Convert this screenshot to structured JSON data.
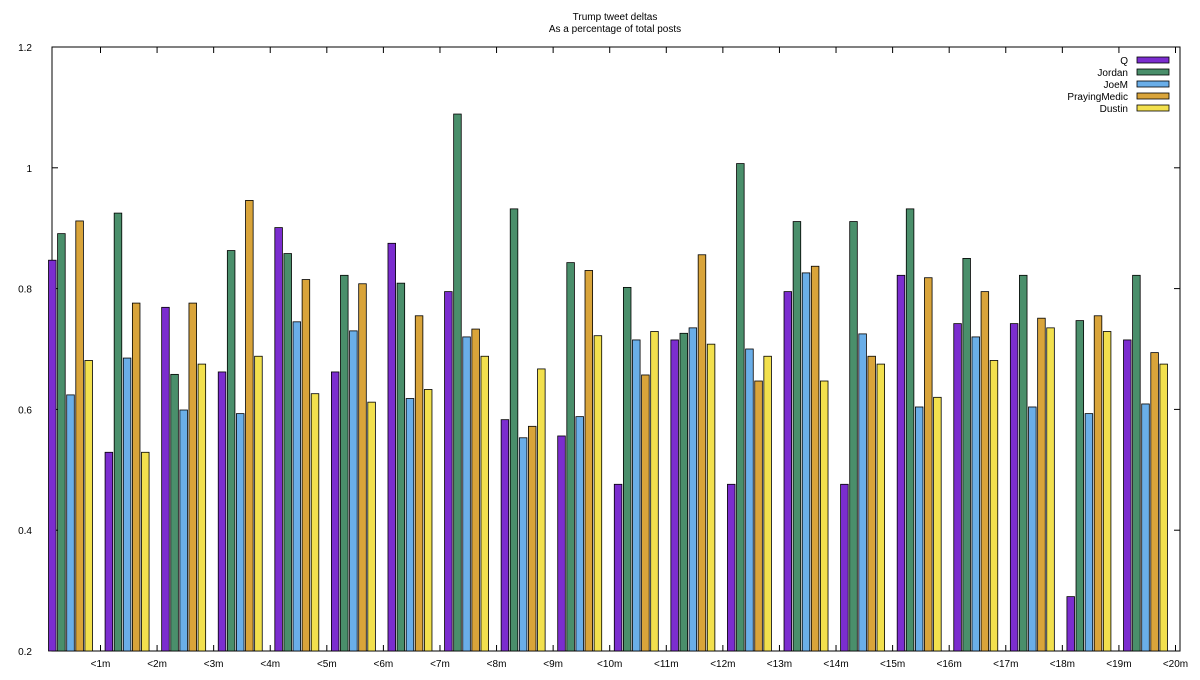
{
  "chart_data": {
    "type": "bar",
    "title": "Trump tweet deltas",
    "subtitle": "As a percentage of total posts",
    "xlabel": "",
    "ylabel": "",
    "ylim": [
      0.2,
      1.2
    ],
    "yticks": [
      "0.2",
      "0.4",
      "0.6",
      "0.8",
      "1",
      "1.2"
    ],
    "grid": false,
    "legend_position": "top-right",
    "categories": [
      "<1m",
      "<2m",
      "<3m",
      "<4m",
      "<5m",
      "<6m",
      "<7m",
      "<8m",
      "<9m",
      "<10m",
      "<11m",
      "<12m",
      "<13m",
      "<14m",
      "<15m",
      "<16m",
      "<17m",
      "<18m",
      "<19m",
      "<20m"
    ],
    "series": [
      {
        "name": "Q",
        "color": "#7b2dcf",
        "values": [
          0.847,
          0.529,
          0.769,
          0.662,
          0.901,
          0.662,
          0.875,
          0.795,
          0.583,
          0.556,
          0.476,
          0.715,
          0.476,
          0.795,
          0.476,
          0.822,
          0.742,
          0.742,
          0.29,
          0.715
        ]
      },
      {
        "name": "Jordan",
        "color": "#4a8f6b",
        "values": [
          0.891,
          0.925,
          0.658,
          0.863,
          0.858,
          0.822,
          0.809,
          1.089,
          0.932,
          0.843,
          0.802,
          0.726,
          1.007,
          0.911,
          0.911,
          0.932,
          0.85,
          0.822,
          0.747,
          0.822
        ]
      },
      {
        "name": "JoeM",
        "color": "#6aaee8",
        "values": [
          0.624,
          0.685,
          0.599,
          0.593,
          0.745,
          0.73,
          0.618,
          0.72,
          0.553,
          0.588,
          0.715,
          0.735,
          0.7,
          0.826,
          0.725,
          0.604,
          0.72,
          0.604,
          0.593,
          0.609
        ]
      },
      {
        "name": "PrayingMedic",
        "color": "#d9a43a",
        "values": [
          0.912,
          0.776,
          0.776,
          0.946,
          0.815,
          0.808,
          0.755,
          0.733,
          0.572,
          0.83,
          0.657,
          0.856,
          0.647,
          0.837,
          0.688,
          0.818,
          0.795,
          0.751,
          0.755,
          0.694
        ]
      },
      {
        "name": "Dustin",
        "color": "#f2e04d",
        "values": [
          0.681,
          0.529,
          0.675,
          0.688,
          0.626,
          0.612,
          0.633,
          0.688,
          0.667,
          0.722,
          0.729,
          0.708,
          0.688,
          0.647,
          0.675,
          0.62,
          0.681,
          0.735,
          0.729,
          0.675
        ]
      }
    ]
  }
}
